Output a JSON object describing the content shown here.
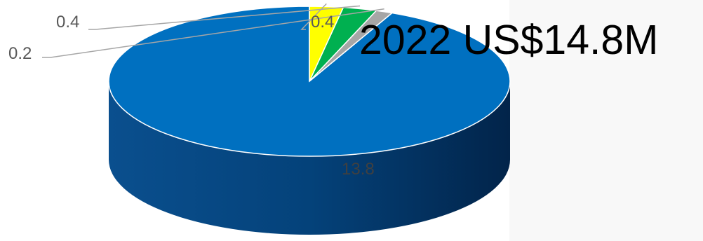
{
  "chart_data": {
    "type": "pie",
    "title": "2022 US$14.8M",
    "values": [
      13.8,
      0.2,
      0.4,
      0.4
    ],
    "data_labels": [
      "13.8",
      "0.2",
      "0.4",
      "0.4"
    ],
    "colors": [
      "#0070C0",
      "#A6A6A6",
      "#00B050",
      "#FFFF00"
    ],
    "style": "3d",
    "legend": "none"
  }
}
